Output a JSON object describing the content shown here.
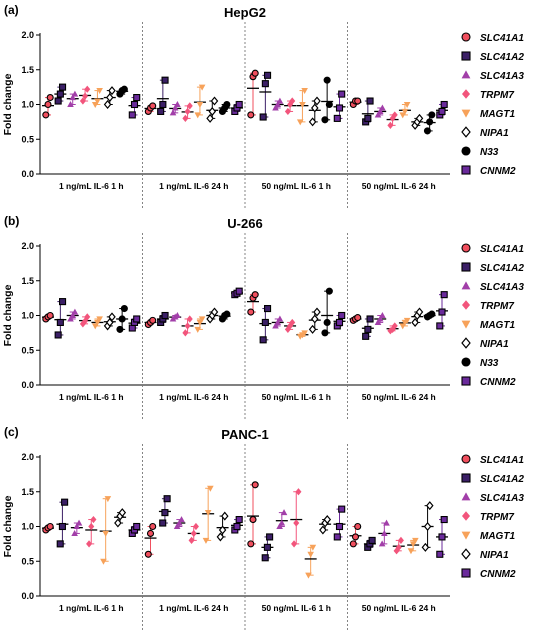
{
  "figure": {
    "y_axis_label": "Fold change"
  },
  "groups": [
    "1 ng/mL IL-6 1 h",
    "1 ng/mL IL-6 24 h",
    "50 ng/mL IL-6 1 h",
    "50 ng/mL IL-6 24 h"
  ],
  "series_styles": {
    "SLC41A1": {
      "color": "#f04f5e",
      "marker": "circle"
    },
    "SLC41A2": {
      "color": "#3b1f66",
      "marker": "square"
    },
    "SLC41A3": {
      "color": "#a23fa9",
      "marker": "triangle-up"
    },
    "TRPM7": {
      "color": "#f2557c",
      "marker": "diamond"
    },
    "MAGT1": {
      "color": "#f7a25a",
      "marker": "triangle-down"
    },
    "NIPA1": {
      "color": "#ffffff",
      "marker": "diamond-open"
    },
    "N33": {
      "color": "#000000",
      "marker": "circle"
    },
    "CNNM2": {
      "color": "#6a2a9b",
      "marker": "square"
    }
  },
  "chart_data": [
    {
      "panel_label": "(a)",
      "type": "scatter",
      "title": "HepG2",
      "ylabel": "Fold change",
      "ylim": [
        0.0,
        2.0
      ],
      "yticks": [
        "0.0",
        "0.5",
        "1.0",
        "1.5",
        "2.0"
      ],
      "categories": [
        "1 ng/mL IL-6 1 h",
        "1 ng/mL IL-6 24 h",
        "50 ng/mL IL-6 1 h",
        "50 ng/mL IL-6 24 h"
      ],
      "legend": [
        "SLC41A1",
        "SLC41A2",
        "SLC41A3",
        "TRPM7",
        "MAGT1",
        "NIPA1",
        "N33",
        "CNNM2"
      ],
      "series": [
        {
          "name": "SLC41A1",
          "values": [
            [
              0.85,
              1.0,
              1.1
            ],
            [
              0.9,
              0.95,
              0.98
            ],
            [
              0.85,
              1.4,
              1.45
            ],
            [
              1.0,
              1.05,
              1.05
            ]
          ]
        },
        {
          "name": "SLC41A2",
          "values": [
            [
              1.05,
              1.15,
              1.25
            ],
            [
              0.9,
              1.0,
              1.35
            ],
            [
              0.82,
              1.3,
              1.42
            ],
            [
              0.75,
              0.8,
              1.05
            ]
          ]
        },
        {
          "name": "SLC41A3",
          "values": [
            [
              1.0,
              1.1,
              1.15
            ],
            [
              0.88,
              0.95,
              1.0
            ],
            [
              0.95,
              1.0,
              1.05
            ],
            [
              0.85,
              0.9,
              0.95
            ]
          ]
        },
        {
          "name": "TRPM7",
          "values": [
            [
              1.05,
              1.12,
              1.22
            ],
            [
              0.8,
              0.9,
              0.98
            ],
            [
              0.9,
              1.0,
              1.05
            ],
            [
              0.7,
              0.8,
              0.85
            ]
          ]
        },
        {
          "name": "MAGT1",
          "values": [
            [
              1.0,
              1.05,
              1.2
            ],
            [
              0.85,
              1.0,
              1.25
            ],
            [
              0.75,
              1.0,
              1.2
            ],
            [
              0.85,
              0.9,
              1.0
            ]
          ]
        },
        {
          "name": "NIPA1",
          "values": [
            [
              1.0,
              1.1,
              1.2
            ],
            [
              0.8,
              0.9,
              1.05
            ],
            [
              0.75,
              0.95,
              1.05
            ],
            [
              0.7,
              0.75,
              0.8
            ]
          ]
        },
        {
          "name": "N33",
          "values": [
            [
              1.15,
              1.2,
              1.22
            ],
            [
              0.9,
              0.95,
              1.0
            ],
            [
              0.78,
              1.35,
              1.0
            ],
            [
              0.62,
              0.75,
              0.85
            ]
          ]
        },
        {
          "name": "CNNM2",
          "values": [
            [
              0.85,
              1.0,
              1.1
            ],
            [
              0.9,
              0.95,
              1.0
            ],
            [
              0.8,
              0.95,
              1.15
            ],
            [
              0.85,
              0.9,
              1.0
            ]
          ]
        }
      ]
    },
    {
      "panel_label": "(b)",
      "type": "scatter",
      "title": "U-266",
      "ylabel": "Fold change",
      "ylim": [
        0.0,
        2.0
      ],
      "yticks": [
        "0.0",
        "0.5",
        "1.0",
        "1.5",
        "2.0"
      ],
      "categories": [
        "1 ng/mL IL-6 1 h",
        "1 ng/mL IL-6 24 h",
        "50 ng/mL IL-6 1 h",
        "50 ng/mL IL-6 24 h"
      ],
      "legend": [
        "SLC41A1",
        "SLC41A2",
        "SLC41A3",
        "TRPM7",
        "MAGT1",
        "NIPA1",
        "N33",
        "CNNM2"
      ],
      "series": [
        {
          "name": "SLC41A1",
          "values": [
            [
              0.95,
              0.98,
              1.0
            ],
            [
              0.87,
              0.9,
              0.93
            ],
            [
              1.05,
              1.25,
              1.3
            ],
            [
              0.93,
              0.95,
              0.97
            ]
          ]
        },
        {
          "name": "SLC41A2",
          "values": [
            [
              0.72,
              0.9,
              1.2
            ],
            [
              0.9,
              0.95,
              1.0
            ],
            [
              0.65,
              0.9,
              1.1
            ],
            [
              0.7,
              0.8,
              0.95
            ]
          ]
        },
        {
          "name": "SLC41A3",
          "values": [
            [
              0.95,
              1.0,
              1.05
            ],
            [
              0.95,
              0.98,
              1.0
            ],
            [
              0.85,
              0.9,
              0.95
            ],
            [
              0.9,
              0.95,
              1.0
            ]
          ]
        },
        {
          "name": "TRPM7",
          "values": [
            [
              0.88,
              0.92,
              0.98
            ],
            [
              0.75,
              0.85,
              0.95
            ],
            [
              0.8,
              0.85,
              0.9
            ],
            [
              0.78,
              0.8,
              0.85
            ]
          ]
        },
        {
          "name": "MAGT1",
          "values": [
            [
              0.85,
              0.9,
              0.95
            ],
            [
              0.8,
              0.9,
              0.95
            ],
            [
              0.7,
              0.72,
              0.75
            ],
            [
              0.85,
              0.9,
              0.93
            ]
          ]
        },
        {
          "name": "NIPA1",
          "values": [
            [
              0.85,
              0.9,
              0.98
            ],
            [
              0.95,
              1.0,
              1.05
            ],
            [
              0.8,
              0.95,
              1.05
            ],
            [
              0.9,
              1.0,
              1.05
            ]
          ]
        },
        {
          "name": "N33",
          "values": [
            [
              0.8,
              0.95,
              1.1
            ],
            [
              0.95,
              1.0,
              1.02
            ],
            [
              0.75,
              0.9,
              1.35
            ],
            [
              0.98,
              1.0,
              1.02
            ]
          ]
        },
        {
          "name": "CNNM2",
          "values": [
            [
              0.82,
              0.9,
              0.95
            ],
            [
              1.3,
              1.32,
              1.35
            ],
            [
              0.85,
              0.9,
              1.0
            ],
            [
              0.85,
              1.05,
              1.3
            ]
          ]
        }
      ]
    },
    {
      "panel_label": "(c)",
      "type": "scatter",
      "title": "PANC-1",
      "ylabel": "Fold change",
      "ylim": [
        0.0,
        2.0
      ],
      "yticks": [
        "0.0",
        "0.5",
        "1.0",
        "1.5",
        "2.0"
      ],
      "categories": [
        "1 ng/mL IL-6 1 h",
        "1 ng/mL IL-6 24 h",
        "50 ng/mL IL-6 1 h",
        "50 ng/mL IL-6 24 h"
      ],
      "legend": [
        "SLC41A1",
        "SLC41A2",
        "SLC41A3",
        "TRPM7",
        "MAGT1",
        "NIPA1",
        "CNNM2"
      ],
      "series": [
        {
          "name": "SLC41A1",
          "values": [
            [
              0.95,
              0.98,
              1.0
            ],
            [
              0.6,
              0.9,
              1.0
            ],
            [
              0.75,
              1.1,
              1.6
            ],
            [
              0.75,
              0.85,
              1.0
            ]
          ]
        },
        {
          "name": "SLC41A2",
          "values": [
            [
              0.75,
              1.0,
              1.35
            ],
            [
              1.05,
              1.2,
              1.4
            ],
            [
              0.55,
              0.7,
              0.85
            ],
            [
              0.7,
              0.75,
              0.8
            ]
          ]
        },
        {
          "name": "SLC41A3",
          "values": [
            [
              0.9,
              1.0,
              1.05
            ],
            [
              1.0,
              1.05,
              1.1
            ],
            [
              1.0,
              1.05,
              1.2
            ],
            [
              0.75,
              0.9,
              1.05
            ]
          ]
        },
        {
          "name": "TRPM7",
          "values": [
            [
              0.75,
              1.0,
              1.1
            ],
            [
              0.8,
              0.9,
              1.0
            ],
            [
              0.75,
              1.05,
              1.5
            ],
            [
              0.65,
              0.7,
              0.8
            ]
          ]
        },
        {
          "name": "MAGT1",
          "values": [
            [
              0.5,
              0.9,
              1.4
            ],
            [
              0.8,
              1.2,
              1.55
            ],
            [
              0.3,
              0.6,
              0.7
            ],
            [
              0.65,
              0.75,
              0.8
            ]
          ]
        },
        {
          "name": "NIPA1",
          "values": [
            [
              1.05,
              1.15,
              1.2
            ],
            [
              0.85,
              0.95,
              1.15
            ],
            [
              0.95,
              1.05,
              1.1
            ],
            [
              0.7,
              1.0,
              1.3
            ]
          ]
        },
        {
          "name": "CNNM2",
          "values": [
            [
              0.9,
              0.95,
              1.0
            ],
            [
              0.95,
              1.0,
              1.1
            ],
            [
              0.85,
              1.0,
              1.25
            ],
            [
              0.6,
              0.85,
              1.1
            ]
          ]
        }
      ]
    }
  ]
}
